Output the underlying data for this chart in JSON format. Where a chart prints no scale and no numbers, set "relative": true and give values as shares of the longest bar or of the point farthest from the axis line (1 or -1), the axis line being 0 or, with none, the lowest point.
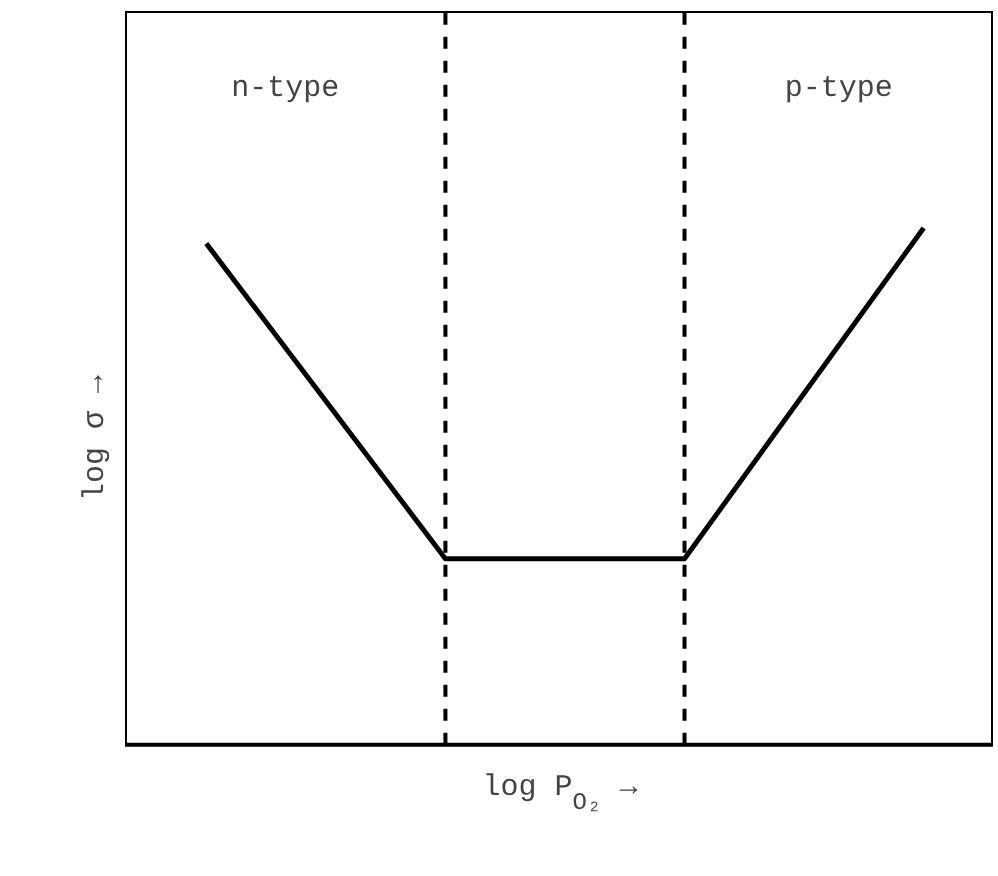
{
  "chart_data": {
    "type": "line",
    "relative": true,
    "categories": [
      null,
      null,
      null,
      null
    ],
    "marker": "none",
    "line_style": "solid",
    "series": [
      {
        "color": "#000000",
        "values": [
          0.97,
          0.36,
          0.36,
          1
        ]
      }
    ],
    "xlabel": "log P$_{O₂}$ →",
    "ylabel": "log σ →",
    "ref_lines": [
      {
        "axis": "x",
        "line_style": "dashed",
        "color": "#000000"
      },
      {
        "axis": "x",
        "line_style": "dashed",
        "color": "#000000"
      }
    ],
    "annotations": [
      "n-type",
      "p-type"
    ]
  }
}
